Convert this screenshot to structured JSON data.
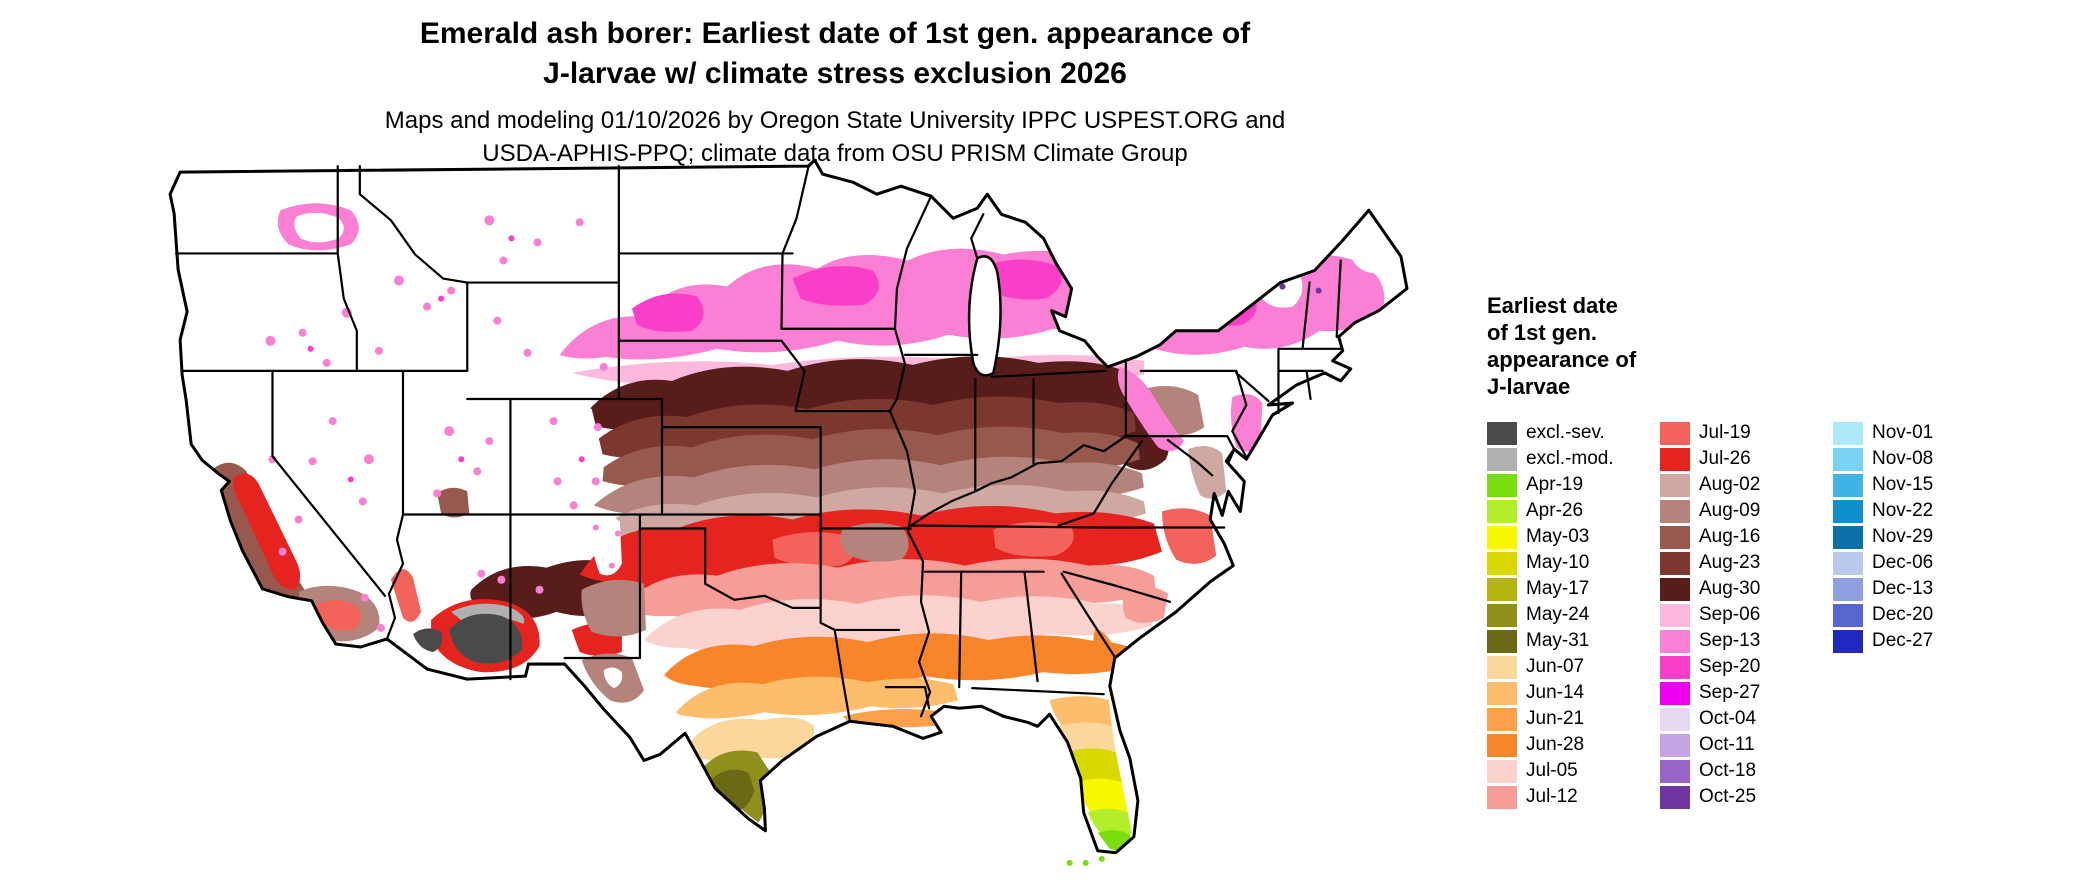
{
  "header": {
    "title_line1": "Emerald ash borer: Earliest date of 1st gen. appearance of",
    "title_line2": "J-larvae w/ climate stress exclusion 2026",
    "subtitle_line1": "Maps and modeling 01/10/2026 by Oregon State University IPPC USPEST.ORG and",
    "subtitle_line2": "USDA-APHIS-PPQ; climate data from OSU PRISM Climate Group"
  },
  "legend": {
    "title_lines": [
      "Earliest date",
      "of 1st gen.",
      "appearance of",
      "J-larvae"
    ],
    "columns": [
      {
        "items": [
          {
            "label": "excl.-sev.",
            "color": "#4a4a4a"
          },
          {
            "label": "excl.-mod.",
            "color": "#b0b0b0"
          },
          {
            "label": "Apr-19",
            "color": "#79dd0e"
          },
          {
            "label": "Apr-26",
            "color": "#b2ef2a"
          },
          {
            "label": "May-03",
            "color": "#f8f800"
          },
          {
            "label": "May-10",
            "color": "#d9d900"
          },
          {
            "label": "May-17",
            "color": "#b5b511"
          },
          {
            "label": "May-24",
            "color": "#8f8f1c"
          },
          {
            "label": "May-31",
            "color": "#6a6a16"
          },
          {
            "label": "Jun-07",
            "color": "#fcd79b"
          },
          {
            "label": "Jun-14",
            "color": "#fdbd6c"
          },
          {
            "label": "Jun-21",
            "color": "#fca14a"
          },
          {
            "label": "Jun-28",
            "color": "#f9852b"
          },
          {
            "label": "Jul-05",
            "color": "#fbd2cd"
          },
          {
            "label": "Jul-12",
            "color": "#f79d98"
          }
        ]
      },
      {
        "items": [
          {
            "label": "Jul-19",
            "color": "#f4625c"
          },
          {
            "label": "Jul-26",
            "color": "#e52420"
          },
          {
            "label": "Aug-02",
            "color": "#cfa9a1"
          },
          {
            "label": "Aug-09",
            "color": "#b4837b"
          },
          {
            "label": "Aug-16",
            "color": "#97584e"
          },
          {
            "label": "Aug-23",
            "color": "#7c372f"
          },
          {
            "label": "Aug-30",
            "color": "#581d1a"
          },
          {
            "label": "Sep-06",
            "color": "#fcb9dd"
          },
          {
            "label": "Sep-13",
            "color": "#fb7fd4"
          },
          {
            "label": "Sep-20",
            "color": "#f93fc9"
          },
          {
            "label": "Sep-27",
            "color": "#f000f0"
          },
          {
            "label": "Oct-04",
            "color": "#e7d9f1"
          },
          {
            "label": "Oct-11",
            "color": "#c6a3e2"
          },
          {
            "label": "Oct-18",
            "color": "#9a63c6"
          },
          {
            "label": "Oct-25",
            "color": "#6f35a0"
          }
        ]
      },
      {
        "items": [
          {
            "label": "Nov-01",
            "color": "#aee9fb"
          },
          {
            "label": "Nov-08",
            "color": "#77d2f4"
          },
          {
            "label": "Nov-15",
            "color": "#3fb4e4"
          },
          {
            "label": "Nov-22",
            "color": "#0f90cd"
          },
          {
            "label": "Nov-29",
            "color": "#0d6fa8"
          },
          {
            "label": "Dec-06",
            "color": "#b9c9ee"
          },
          {
            "label": "Dec-13",
            "color": "#8fa0e0"
          },
          {
            "label": "Dec-20",
            "color": "#5767cf"
          },
          {
            "label": "Dec-27",
            "color": "#2228bd"
          }
        ]
      }
    ]
  },
  "palette": {
    "white": "#ffffff",
    "excl_sev": "#4a4a4a",
    "excl_mod": "#b0b0b0",
    "apr19": "#79dd0e",
    "apr26": "#b2ef2a",
    "may03": "#f8f800",
    "may10": "#d9d900",
    "may17": "#b5b511",
    "may24": "#8f8f1c",
    "may31": "#6a6a16",
    "jun07": "#fcd79b",
    "jun14": "#fdbd6c",
    "jun21": "#fca14a",
    "jun28": "#f9852b",
    "jul05": "#fbd2cd",
    "jul12": "#f79d98",
    "jul19": "#f4625c",
    "jul26": "#e52420",
    "aug02": "#cfa9a1",
    "aug09": "#b4837b",
    "aug16": "#97584e",
    "aug23": "#7c372f",
    "aug30": "#581d1a",
    "sep06": "#fcb9dd",
    "sep13": "#fb7fd4",
    "sep20": "#f93fc9",
    "sep27": "#f000f0",
    "oct04": "#e7d9f1",
    "oct11": "#c6a3e2",
    "oct18": "#9a63c6",
    "oct25": "#6f35a0",
    "nov01": "#aee9fb",
    "nov08": "#77d2f4",
    "nov15": "#3fb4e4",
    "nov22": "#0f90cd",
    "nov29": "#0d6fa8",
    "dec06": "#b9c9ee",
    "dec13": "#8fa0e0",
    "dec20": "#5767cf",
    "dec27": "#2228bd"
  }
}
